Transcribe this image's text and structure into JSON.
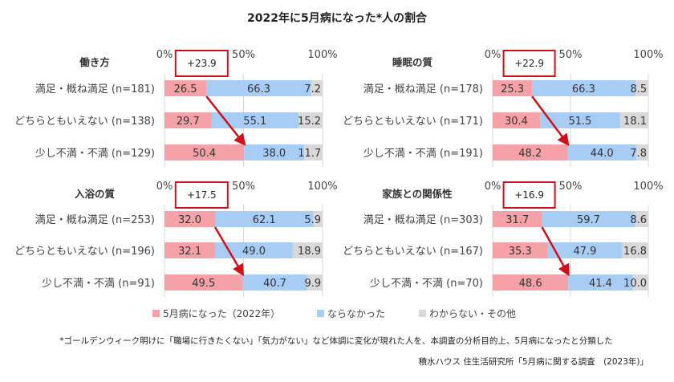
{
  "title": "2022年に5月病になった*人の割合",
  "colors": {
    "sick": "#f4a2a8",
    "not_sick": "#a7cdf4",
    "other": "#d9d9d9",
    "accent": "#d0101a",
    "grid": "#d9d9d9"
  },
  "chart_data": {
    "type": "bar",
    "stacked": true,
    "orientation": "horizontal",
    "xlim": [
      0,
      100
    ],
    "ticks": [
      "0%",
      "50%",
      "100%"
    ],
    "grid": true,
    "legend_position": "bottom",
    "legend": [
      "5月病になった（2022年）",
      "ならなかった",
      "わからない・その他"
    ],
    "panels": [
      {
        "title": "働き方",
        "diff": "+23.9",
        "categories": [
          "満足・概ね満足 (n=181)",
          "どちらともいえない (n=138)",
          "少し不満・不満 (n=129)"
        ],
        "series": [
          {
            "name": "5月病になった（2022年）",
            "values": [
              26.5,
              29.7,
              50.4
            ]
          },
          {
            "name": "ならなかった",
            "values": [
              66.3,
              55.1,
              38.0
            ]
          },
          {
            "name": "わからない・その他",
            "values": [
              7.2,
              15.2,
              11.7
            ]
          }
        ]
      },
      {
        "title": "睡眠の質",
        "diff": "+22.9",
        "categories": [
          "満足・概ね満足 (n=178)",
          "どちらともいえない (n=171)",
          "少し不満・不満 (n=191)"
        ],
        "series": [
          {
            "name": "5月病になった（2022年）",
            "values": [
              25.3,
              30.4,
              48.2
            ]
          },
          {
            "name": "ならなかった",
            "values": [
              66.3,
              51.5,
              44.0
            ]
          },
          {
            "name": "わからない・その他",
            "values": [
              8.5,
              18.1,
              7.8
            ]
          }
        ]
      },
      {
        "title": "入浴の質",
        "diff": "+17.5",
        "categories": [
          "満足・概ね満足 (n=253)",
          "どちらともいえない (n=196)",
          "少し不満・不満 (n=91)"
        ],
        "series": [
          {
            "name": "5月病になった（2022年）",
            "values": [
              32.0,
              32.1,
              49.5
            ]
          },
          {
            "name": "ならなかった",
            "values": [
              62.1,
              49.0,
              40.7
            ]
          },
          {
            "name": "わからない・その他",
            "values": [
              5.9,
              18.9,
              9.9
            ]
          }
        ]
      },
      {
        "title": "家族との関係性",
        "diff": "+16.9",
        "categories": [
          "満足・概ね満足 (n=303)",
          "どちらともいえない (n=167)",
          "少し不満・不満 (n=70)"
        ],
        "series": [
          {
            "name": "5月病になった（2022年）",
            "values": [
              31.7,
              35.3,
              48.6
            ]
          },
          {
            "name": "ならなかった",
            "values": [
              59.7,
              47.9,
              41.4
            ]
          },
          {
            "name": "わからない・その他",
            "values": [
              8.6,
              16.8,
              10.0
            ]
          }
        ]
      }
    ]
  },
  "footnote": "*ゴールデンウィーク明けに「職場に行きたくない」「気力がない」など体調に変化が現れた人を、本調査の分析目的上、5月病になったと分類した",
  "source": "積水ハウス 住生活研究所「5月病に関する調査　(2023年)」"
}
